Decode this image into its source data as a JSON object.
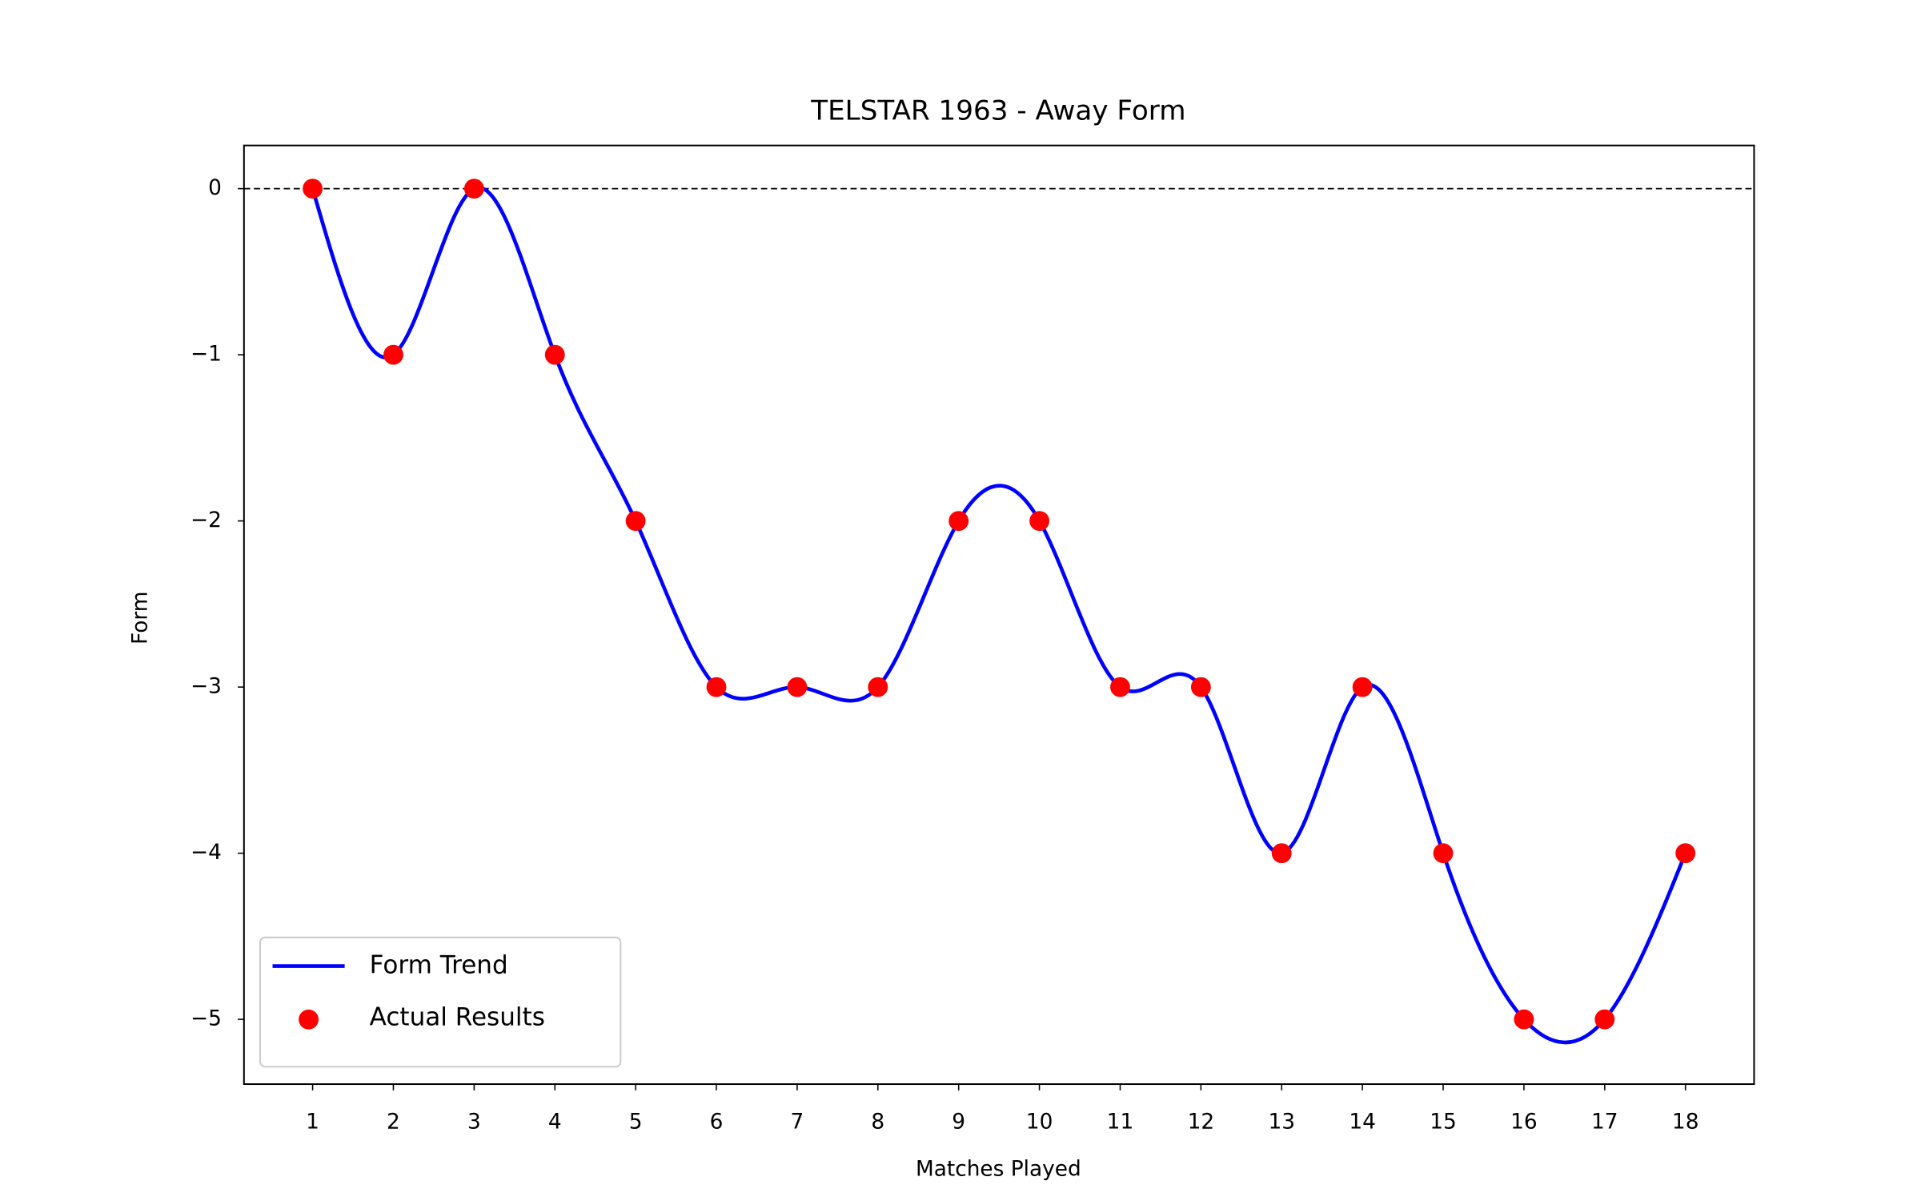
{
  "chart_data": {
    "type": "line",
    "title": "TELSTAR 1963 - Away Form",
    "xlabel": "Matches Played",
    "ylabel": "Form",
    "x": [
      1,
      2,
      3,
      4,
      5,
      6,
      7,
      8,
      9,
      10,
      11,
      12,
      13,
      14,
      15,
      16,
      17,
      18
    ],
    "series": [
      {
        "name": "Form Trend",
        "type": "line",
        "smooth": true,
        "color": "#0000ff",
        "values": [
          0,
          -1,
          0,
          -1,
          -2,
          -3,
          -3,
          -3,
          -2,
          -2,
          -3,
          -3,
          -4,
          -3,
          -4,
          -5,
          -5,
          -4
        ]
      },
      {
        "name": "Actual Results",
        "type": "scatter",
        "color": "#ff0000",
        "values": [
          0,
          -1,
          0,
          -1,
          -2,
          -3,
          -3,
          -3,
          -2,
          -2,
          -3,
          -3,
          -4,
          -3,
          -4,
          -5,
          -5,
          -4
        ]
      }
    ],
    "xlim": [
      0.15,
      18.85
    ],
    "ylim": [
      -5.39,
      0.26
    ],
    "xticks": [
      1,
      2,
      3,
      4,
      5,
      6,
      7,
      8,
      9,
      10,
      11,
      12,
      13,
      14,
      15,
      16,
      17,
      18
    ],
    "yticks": [
      0,
      {
        "value": -1,
        "label": "−1"
      },
      {
        "value": -2,
        "label": "−2"
      },
      {
        "value": -3,
        "label": "−3"
      },
      {
        "value": -4,
        "label": "−4"
      },
      {
        "value": -5,
        "label": "−5"
      }
    ],
    "hline": 0,
    "legend": "lower left"
  }
}
